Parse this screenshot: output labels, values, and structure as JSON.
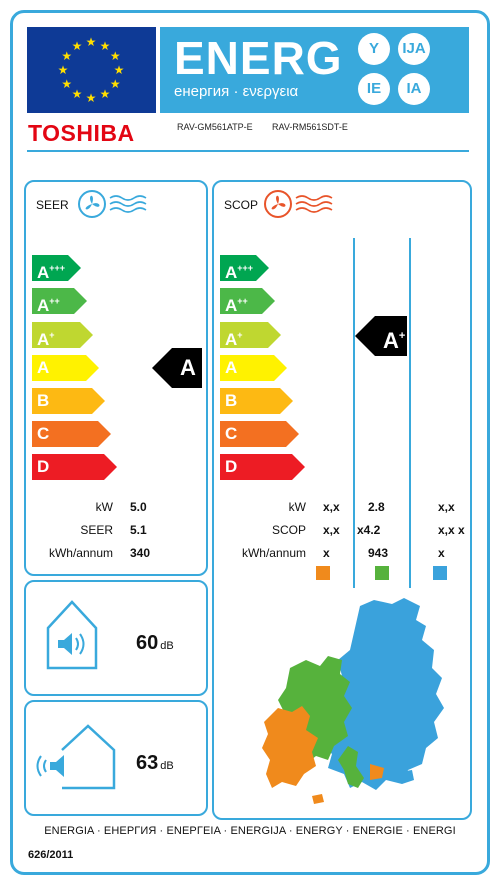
{
  "header": {
    "energy_word": "ENERG",
    "energy_sub": "енергия · ενεργεια",
    "lang_badges": [
      "Y",
      "IJA",
      "IE",
      "IA"
    ],
    "brand": "TOSHIBA",
    "model_indoor": "RAV-GM561ATP-E",
    "model_outdoor": "RAV-RM561SDT-E"
  },
  "cooling": {
    "title": "SEER",
    "icon": "fan-cooling-icon",
    "scale": [
      "A+++",
      "A++",
      "A+",
      "A",
      "B",
      "C",
      "D"
    ],
    "rating": "A",
    "rows": [
      {
        "label": "kW",
        "value": "5.0"
      },
      {
        "label": "SEER",
        "value": "5.1"
      },
      {
        "label": "kWh/annum",
        "value": "340"
      }
    ]
  },
  "heating": {
    "title": "SCOP",
    "icon": "fan-heating-icon",
    "scale": [
      "A+++",
      "A++",
      "A+",
      "A",
      "B",
      "C",
      "D"
    ],
    "rating": "A+",
    "rows": [
      {
        "label": "kW",
        "cold": "x,x",
        "average": "2.8",
        "warm": "x,x"
      },
      {
        "label": "SCOP",
        "cold": "x,x",
        "average": "x4.2",
        "warm": "x,x x"
      },
      {
        "label": "kWh/annum",
        "cold": "x",
        "average": "943",
        "warm": "x"
      }
    ],
    "climate_colors": {
      "cold": "#f08a1c",
      "average": "#56b23c",
      "warm": "#3aa2dc"
    }
  },
  "noise": {
    "indoor": {
      "value": "60",
      "unit": "dB",
      "icon": "indoor-speaker-icon"
    },
    "outdoor": {
      "value": "63",
      "unit": "dB",
      "icon": "outdoor-speaker-icon"
    }
  },
  "colors": {
    "frame": "#39a9dc",
    "bars": [
      "#00a651",
      "#4cb848",
      "#bfd730",
      "#fff200",
      "#fdb913",
      "#f37021",
      "#ed1c24"
    ]
  },
  "footer": {
    "languages": "ENERGIA · ЕНЕРГИЯ · ΕΝΕΡΓΕΙΑ · ENERGIJA · ENERGY · ENERGIE · ENERGI",
    "regulation": "626/2011"
  }
}
